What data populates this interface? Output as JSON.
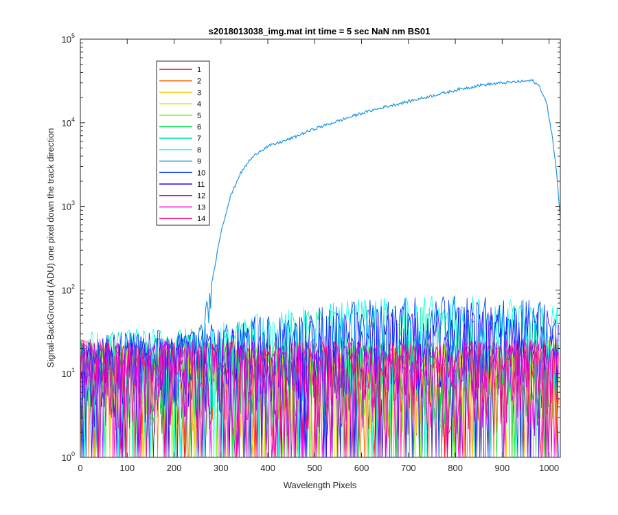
{
  "chart_data": {
    "type": "line",
    "title": "s2018013038_img.mat int time = 5 sec  NaN nm BS01",
    "xlabel": "Wavelength Pixels",
    "ylabel": "Signal-BackGround (ADU) one pixel down the track direction",
    "xlim": [
      0,
      1024
    ],
    "ylim": [
      1,
      100000
    ],
    "yscale": "log",
    "grid": false,
    "legend_position": "top-left",
    "x_ticks": [
      "0",
      "100",
      "200",
      "300",
      "400",
      "500",
      "600",
      "700",
      "800",
      "900",
      "1000"
    ],
    "x_tick_values": [
      0,
      100,
      200,
      300,
      400,
      500,
      600,
      700,
      800,
      900,
      1000
    ],
    "y_tick_exponents": [
      "0",
      "1",
      "2",
      "3",
      "4",
      "5"
    ],
    "y_tick_base": "10",
    "y_tick_values": [
      1,
      10,
      100,
      1000,
      10000,
      100000
    ],
    "series": [
      {
        "name": "1",
        "color": "#ff0000",
        "values": [
          [
            0,
            12
          ],
          [
            100,
            10
          ],
          [
            200,
            12
          ],
          [
            300,
            11
          ],
          [
            400,
            10
          ],
          [
            500,
            11
          ],
          [
            600,
            12
          ],
          [
            700,
            11
          ],
          [
            800,
            12
          ],
          [
            900,
            11
          ],
          [
            1020,
            12
          ]
        ]
      },
      {
        "name": "2",
        "color": "#ff6a00",
        "values": [
          [
            0,
            11
          ],
          [
            100,
            12
          ],
          [
            200,
            10
          ],
          [
            300,
            12
          ],
          [
            400,
            11
          ],
          [
            500,
            12
          ],
          [
            600,
            10
          ],
          [
            700,
            12
          ],
          [
            800,
            11
          ],
          [
            900,
            12
          ],
          [
            1020,
            11
          ]
        ]
      },
      {
        "name": "3",
        "color": "#ffcc00",
        "values": [
          [
            0,
            12
          ],
          [
            100,
            11
          ],
          [
            200,
            12
          ],
          [
            300,
            10
          ],
          [
            400,
            12
          ],
          [
            500,
            11
          ],
          [
            600,
            12
          ],
          [
            700,
            10
          ],
          [
            800,
            12
          ],
          [
            900,
            11
          ],
          [
            1020,
            12
          ]
        ]
      },
      {
        "name": "4",
        "color": "#c8f000",
        "values": [
          [
            0,
            10
          ],
          [
            100,
            12
          ],
          [
            200,
            11
          ],
          [
            300,
            12
          ],
          [
            400,
            10
          ],
          [
            500,
            12
          ],
          [
            600,
            11
          ],
          [
            700,
            12
          ],
          [
            800,
            10
          ],
          [
            900,
            12
          ],
          [
            1020,
            11
          ]
        ]
      },
      {
        "name": "5",
        "color": "#5fff00",
        "values": [
          [
            0,
            12
          ],
          [
            100,
            10
          ],
          [
            200,
            12
          ],
          [
            300,
            11
          ],
          [
            400,
            12
          ],
          [
            500,
            10
          ],
          [
            600,
            12
          ],
          [
            700,
            11
          ],
          [
            800,
            12
          ],
          [
            900,
            10
          ],
          [
            1020,
            12
          ]
        ]
      },
      {
        "name": "6",
        "color": "#00e640",
        "values": [
          [
            0,
            11
          ],
          [
            100,
            12
          ],
          [
            200,
            10
          ],
          [
            300,
            12
          ],
          [
            400,
            11
          ],
          [
            500,
            12
          ],
          [
            600,
            10
          ],
          [
            700,
            12
          ],
          [
            800,
            11
          ],
          [
            900,
            12
          ],
          [
            1020,
            11
          ]
        ]
      },
      {
        "name": "7",
        "color": "#00f0a0",
        "values": [
          [
            0,
            14
          ],
          [
            100,
            15
          ],
          [
            200,
            16
          ],
          [
            300,
            18
          ],
          [
            400,
            22
          ],
          [
            500,
            28
          ],
          [
            600,
            32
          ],
          [
            700,
            34
          ],
          [
            800,
            33
          ],
          [
            900,
            32
          ],
          [
            1020,
            30
          ]
        ]
      },
      {
        "name": "8",
        "color": "#00ffee",
        "values": [
          [
            0,
            15
          ],
          [
            100,
            16
          ],
          [
            200,
            17
          ],
          [
            300,
            20
          ],
          [
            400,
            25
          ],
          [
            500,
            32
          ],
          [
            600,
            38
          ],
          [
            700,
            40
          ],
          [
            800,
            40
          ],
          [
            900,
            38
          ],
          [
            1020,
            35
          ]
        ]
      },
      {
        "name": "9",
        "color": "#1c94e0",
        "values": [
          [
            0,
            12
          ],
          [
            100,
            14
          ],
          [
            200,
            16
          ],
          [
            260,
            22
          ],
          [
            275,
            60
          ],
          [
            280,
            120
          ],
          [
            300,
            500
          ],
          [
            320,
            1300
          ],
          [
            340,
            2400
          ],
          [
            360,
            3500
          ],
          [
            380,
            4500
          ],
          [
            400,
            5200
          ],
          [
            450,
            6500
          ],
          [
            500,
            8500
          ],
          [
            550,
            10500
          ],
          [
            600,
            13000
          ],
          [
            650,
            15500
          ],
          [
            700,
            18000
          ],
          [
            750,
            21000
          ],
          [
            800,
            24500
          ],
          [
            850,
            28000
          ],
          [
            900,
            30000
          ],
          [
            950,
            31500
          ],
          [
            965,
            32000
          ],
          [
            980,
            27000
          ],
          [
            995,
            17000
          ],
          [
            1005,
            8000
          ],
          [
            1015,
            3000
          ],
          [
            1024,
            700
          ]
        ]
      },
      {
        "name": "10",
        "color": "#0033ff",
        "values": [
          [
            0,
            14
          ],
          [
            100,
            15
          ],
          [
            200,
            16
          ],
          [
            300,
            19
          ],
          [
            400,
            24
          ],
          [
            500,
            30
          ],
          [
            600,
            36
          ],
          [
            700,
            40
          ],
          [
            800,
            40
          ],
          [
            900,
            38
          ],
          [
            1020,
            34
          ]
        ]
      },
      {
        "name": "11",
        "color": "#3300ff",
        "values": [
          [
            0,
            12
          ],
          [
            100,
            13
          ],
          [
            200,
            14
          ],
          [
            300,
            16
          ],
          [
            400,
            19
          ],
          [
            500,
            24
          ],
          [
            600,
            28
          ],
          [
            700,
            30
          ],
          [
            800,
            30
          ],
          [
            900,
            29
          ],
          [
            1020,
            27
          ]
        ]
      },
      {
        "name": "12",
        "color": "#aa00ff",
        "values": [
          [
            0,
            11
          ],
          [
            100,
            12
          ],
          [
            200,
            12
          ],
          [
            300,
            11
          ],
          [
            400,
            12
          ],
          [
            500,
            11
          ],
          [
            600,
            12
          ],
          [
            700,
            11
          ],
          [
            800,
            12
          ],
          [
            900,
            11
          ],
          [
            1020,
            12
          ]
        ]
      },
      {
        "name": "13",
        "color": "#ff00dd",
        "values": [
          [
            0,
            12
          ],
          [
            100,
            11
          ],
          [
            200,
            12
          ],
          [
            300,
            12
          ],
          [
            400,
            11
          ],
          [
            500,
            12
          ],
          [
            600,
            11
          ],
          [
            700,
            12
          ],
          [
            800,
            11
          ],
          [
            900,
            12
          ],
          [
            1020,
            11
          ]
        ]
      },
      {
        "name": "14",
        "color": "#ff0080",
        "values": [
          [
            0,
            12
          ],
          [
            100,
            12
          ],
          [
            200,
            11
          ],
          [
            300,
            12
          ],
          [
            400,
            12
          ],
          [
            500,
            11
          ],
          [
            600,
            12
          ],
          [
            700,
            12
          ],
          [
            800,
            11
          ],
          [
            900,
            12
          ],
          [
            1020,
            12
          ]
        ]
      }
    ]
  }
}
